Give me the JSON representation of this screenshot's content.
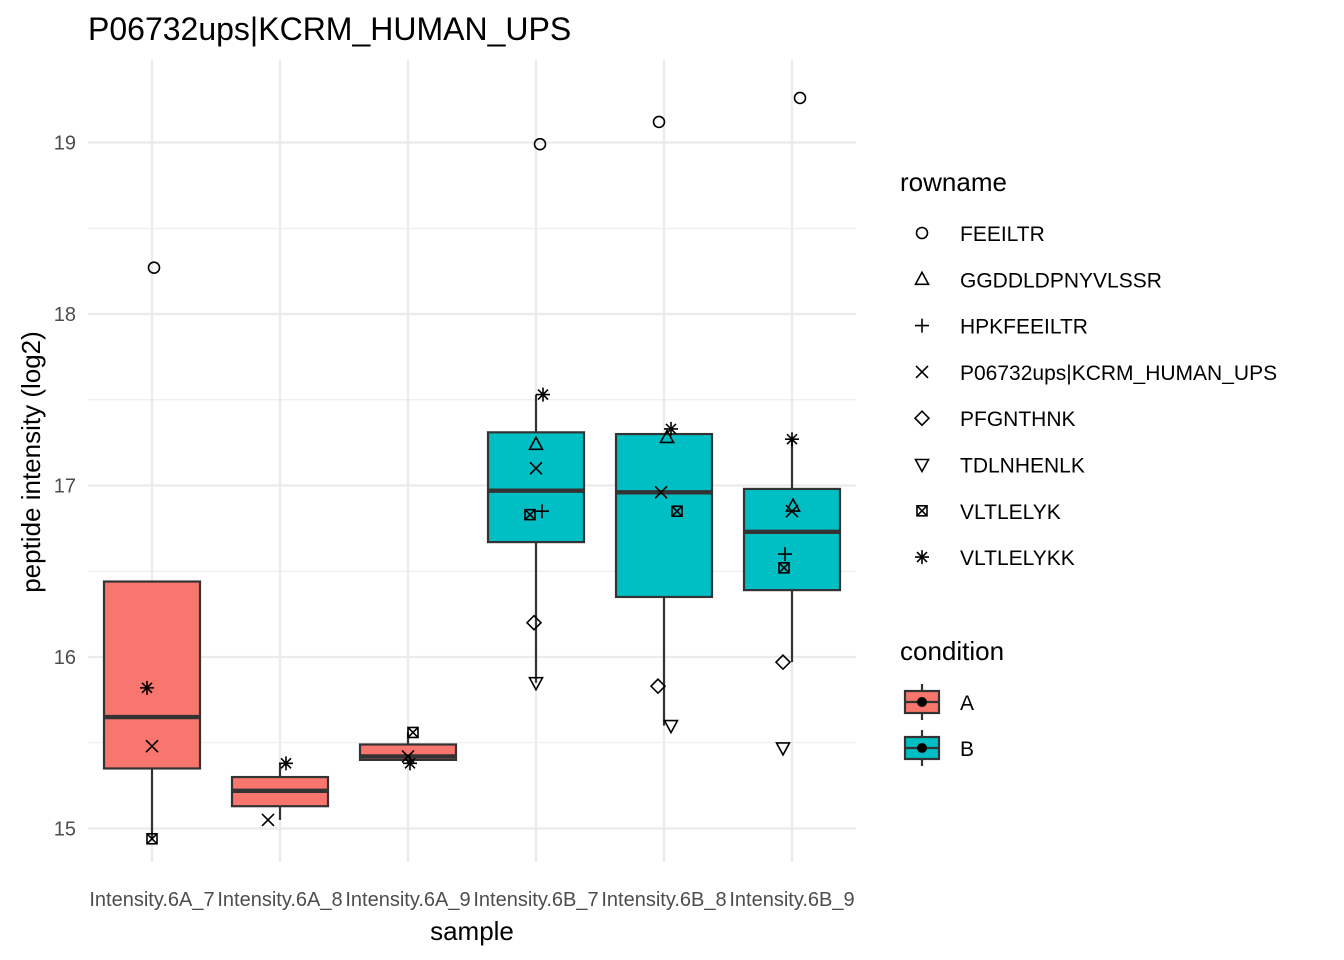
{
  "chart_data": {
    "type": "box",
    "title": "P06732ups|KCRM_HUMAN_UPS",
    "xlabel": "sample",
    "ylabel": "peptide intensity (log2)",
    "ylim": [
      14.75,
      19.5
    ],
    "yticks": [
      15,
      16,
      17,
      18,
      19
    ],
    "grid": true,
    "legend_position": "right",
    "categories": [
      "Intensity.6A_7",
      "Intensity.6A_8",
      "Intensity.6A_9",
      "Intensity.6B_7",
      "Intensity.6B_8",
      "Intensity.6B_9"
    ],
    "condition_colors": {
      "A": "#F8766D",
      "B": "#00BFC4"
    },
    "boxes": [
      {
        "sample": "Intensity.6A_7",
        "condition": "A",
        "lower_whisker": 14.94,
        "q1": 15.35,
        "median": 15.65,
        "q3": 16.44,
        "upper_whisker": 16.44
      },
      {
        "sample": "Intensity.6A_8",
        "condition": "A",
        "lower_whisker": 15.05,
        "q1": 15.13,
        "median": 15.22,
        "q3": 15.3,
        "upper_whisker": 15.38
      },
      {
        "sample": "Intensity.6A_9",
        "condition": "A",
        "lower_whisker": 15.38,
        "q1": 15.4,
        "median": 15.42,
        "q3": 15.49,
        "upper_whisker": 15.56
      },
      {
        "sample": "Intensity.6B_7",
        "condition": "B",
        "lower_whisker": 15.85,
        "q1": 16.67,
        "median": 16.97,
        "q3": 17.31,
        "upper_whisker": 17.53
      },
      {
        "sample": "Intensity.6B_8",
        "condition": "B",
        "lower_whisker": 15.6,
        "q1": 16.35,
        "median": 16.96,
        "q3": 17.3,
        "upper_whisker": 17.3
      },
      {
        "sample": "Intensity.6B_9",
        "condition": "B",
        "lower_whisker": 15.97,
        "q1": 16.39,
        "median": 16.73,
        "q3": 16.98,
        "upper_whisker": 17.27
      }
    ],
    "points": [
      {
        "sample": "Intensity.6A_7",
        "rowname": "FEEILTR",
        "y": 18.27
      },
      {
        "sample": "Intensity.6A_7",
        "rowname": "VLTLELYKK",
        "y": 15.82
      },
      {
        "sample": "Intensity.6A_7",
        "rowname": "P06732ups|KCRM_HUMAN_UPS",
        "y": 15.48
      },
      {
        "sample": "Intensity.6A_7",
        "rowname": "VLTLELYK",
        "y": 14.94
      },
      {
        "sample": "Intensity.6A_8",
        "rowname": "VLTLELYKK",
        "y": 15.38
      },
      {
        "sample": "Intensity.6A_8",
        "rowname": "P06732ups|KCRM_HUMAN_UPS",
        "y": 15.05
      },
      {
        "sample": "Intensity.6A_9",
        "rowname": "VLTLELYK",
        "y": 15.56
      },
      {
        "sample": "Intensity.6A_9",
        "rowname": "P06732ups|KCRM_HUMAN_UPS",
        "y": 15.42
      },
      {
        "sample": "Intensity.6A_9",
        "rowname": "VLTLELYKK",
        "y": 15.38
      },
      {
        "sample": "Intensity.6B_7",
        "rowname": "FEEILTR",
        "y": 18.99
      },
      {
        "sample": "Intensity.6B_7",
        "rowname": "VLTLELYKK",
        "y": 17.53
      },
      {
        "sample": "Intensity.6B_7",
        "rowname": "GGDDLDPNYVLSSR",
        "y": 17.24
      },
      {
        "sample": "Intensity.6B_7",
        "rowname": "P06732ups|KCRM_HUMAN_UPS",
        "y": 17.1
      },
      {
        "sample": "Intensity.6B_7",
        "rowname": "HPKFEEILTR",
        "y": 16.85
      },
      {
        "sample": "Intensity.6B_7",
        "rowname": "VLTLELYK",
        "y": 16.83
      },
      {
        "sample": "Intensity.6B_7",
        "rowname": "PFGNTHNK",
        "y": 16.2
      },
      {
        "sample": "Intensity.6B_7",
        "rowname": "TDLNHENLK",
        "y": 15.85
      },
      {
        "sample": "Intensity.6B_8",
        "rowname": "FEEILTR",
        "y": 19.12
      },
      {
        "sample": "Intensity.6B_8",
        "rowname": "VLTLELYKK",
        "y": 17.33
      },
      {
        "sample": "Intensity.6B_8",
        "rowname": "GGDDLDPNYVLSSR",
        "y": 17.28
      },
      {
        "sample": "Intensity.6B_8",
        "rowname": "P06732ups|KCRM_HUMAN_UPS",
        "y": 16.96
      },
      {
        "sample": "Intensity.6B_8",
        "rowname": "VLTLELYK",
        "y": 16.85
      },
      {
        "sample": "Intensity.6B_8",
        "rowname": "PFGNTHNK",
        "y": 15.83
      },
      {
        "sample": "Intensity.6B_8",
        "rowname": "TDLNHENLK",
        "y": 15.6
      },
      {
        "sample": "Intensity.6B_9",
        "rowname": "FEEILTR",
        "y": 19.26
      },
      {
        "sample": "Intensity.6B_9",
        "rowname": "VLTLELYKK",
        "y": 17.27
      },
      {
        "sample": "Intensity.6B_9",
        "rowname": "GGDDLDPNYVLSSR",
        "y": 16.88
      },
      {
        "sample": "Intensity.6B_9",
        "rowname": "P06732ups|KCRM_HUMAN_UPS",
        "y": 16.85
      },
      {
        "sample": "Intensity.6B_9",
        "rowname": "HPKFEEILTR",
        "y": 16.6
      },
      {
        "sample": "Intensity.6B_9",
        "rowname": "VLTLELYK",
        "y": 16.52
      },
      {
        "sample": "Intensity.6B_9",
        "rowname": "PFGNTHNK",
        "y": 15.97
      },
      {
        "sample": "Intensity.6B_9",
        "rowname": "TDLNHENLK",
        "y": 15.47
      }
    ],
    "legend_rowname": {
      "title": "rowname",
      "entries": [
        {
          "label": "FEEILTR",
          "shape": "circle"
        },
        {
          "label": "GGDDLDPNYVLSSR",
          "shape": "triangle"
        },
        {
          "label": "HPKFEEILTR",
          "shape": "plus"
        },
        {
          "label": "P06732ups|KCRM_HUMAN_UPS",
          "shape": "cross"
        },
        {
          "label": "PFGNTHNK",
          "shape": "diamond"
        },
        {
          "label": "TDLNHENLK",
          "shape": "triangle-down"
        },
        {
          "label": "VLTLELYK",
          "shape": "square-cross"
        },
        {
          "label": "VLTLELYKK",
          "shape": "asterisk"
        }
      ]
    },
    "legend_condition": {
      "title": "condition",
      "entries": [
        {
          "label": "A",
          "color": "#F8766D"
        },
        {
          "label": "B",
          "color": "#00BFC4"
        }
      ]
    }
  }
}
